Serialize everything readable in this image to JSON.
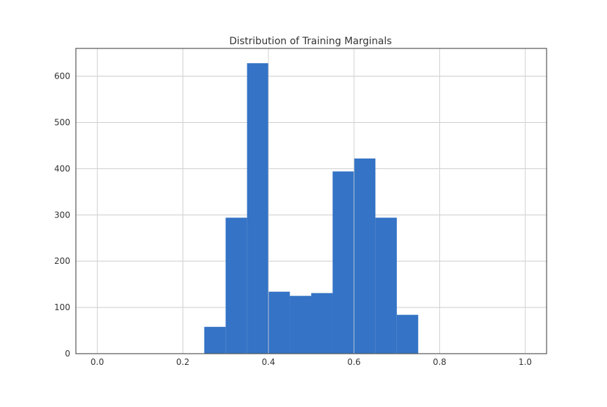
{
  "chart_data": {
    "type": "bar",
    "title": "Distribution of Training Marginals",
    "xlabel": "",
    "ylabel": "",
    "xlim": [
      -0.05,
      1.05
    ],
    "ylim": [
      0,
      660
    ],
    "xticks": [
      "0.0",
      "0.2",
      "0.4",
      "0.6",
      "0.8",
      "1.0"
    ],
    "yticks": [
      "0",
      "100",
      "200",
      "300",
      "400",
      "500",
      "600"
    ],
    "grid": true,
    "bar_color": "#3473c5",
    "bins": [
      {
        "x0": 0.25,
        "x1": 0.3,
        "count": 58
      },
      {
        "x0": 0.3,
        "x1": 0.35,
        "count": 294
      },
      {
        "x0": 0.35,
        "x1": 0.4,
        "count": 628
      },
      {
        "x0": 0.4,
        "x1": 0.45,
        "count": 134
      },
      {
        "x0": 0.45,
        "x1": 0.5,
        "count": 125
      },
      {
        "x0": 0.5,
        "x1": 0.55,
        "count": 131
      },
      {
        "x0": 0.55,
        "x1": 0.6,
        "count": 394
      },
      {
        "x0": 0.6,
        "x1": 0.65,
        "count": 422
      },
      {
        "x0": 0.65,
        "x1": 0.7,
        "count": 294
      },
      {
        "x0": 0.7,
        "x1": 0.75,
        "count": 84
      }
    ]
  }
}
